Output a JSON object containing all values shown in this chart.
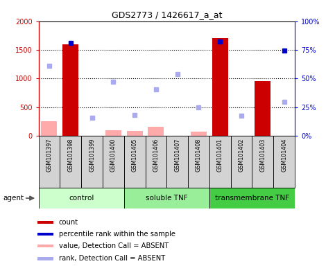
{
  "title": "GDS2773 / 1426617_a_at",
  "samples": [
    "GSM101397",
    "GSM101398",
    "GSM101399",
    "GSM101400",
    "GSM101405",
    "GSM101406",
    "GSM101407",
    "GSM101408",
    "GSM101401",
    "GSM101402",
    "GSM101403",
    "GSM101404"
  ],
  "groups": [
    {
      "label": "control",
      "start": 0,
      "end": 4,
      "color": "#ccffcc"
    },
    {
      "label": "soluble TNF",
      "start": 4,
      "end": 8,
      "color": "#99ee99"
    },
    {
      "label": "transmembrane TNF",
      "start": 8,
      "end": 12,
      "color": "#44cc44"
    }
  ],
  "count_values": [
    null,
    1600,
    null,
    null,
    null,
    null,
    null,
    null,
    1700,
    null,
    950,
    null
  ],
  "count_absent": [
    250,
    null,
    null,
    100,
    80,
    150,
    null,
    70,
    null,
    null,
    null,
    null
  ],
  "rank_values": [
    null,
    1620,
    null,
    null,
    null,
    null,
    null,
    null,
    1640,
    null,
    null,
    1490
  ],
  "rank_absent": [
    1220,
    null,
    310,
    940,
    360,
    810,
    1080,
    500,
    null,
    350,
    null,
    590
  ],
  "ylim_left": [
    0,
    2000
  ],
  "ylim_right": [
    0,
    100
  ],
  "yticks_left": [
    0,
    500,
    1000,
    1500,
    2000
  ],
  "ytick_labels_left": [
    "0",
    "500",
    "1000",
    "1500",
    "2000"
  ],
  "yticks_right": [
    0,
    25,
    50,
    75,
    100
  ],
  "ytick_labels_right": [
    "0%",
    "25%",
    "50%",
    "75%",
    "100%"
  ],
  "left_color": "#cc0000",
  "right_color": "#0000cc",
  "bar_color_present": "#cc0000",
  "bar_color_absent": "#ffaaaa",
  "dot_color_present": "#0000cc",
  "dot_color_absent": "#aaaaee",
  "agent_label": "agent",
  "legend_items": [
    {
      "label": "count",
      "color": "#cc0000"
    },
    {
      "label": "percentile rank within the sample",
      "color": "#0000cc"
    },
    {
      "label": "value, Detection Call = ABSENT",
      "color": "#ffaaaa"
    },
    {
      "label": "rank, Detection Call = ABSENT",
      "color": "#aaaaee"
    }
  ],
  "fig_width": 4.83,
  "fig_height": 3.84,
  "dpi": 100
}
